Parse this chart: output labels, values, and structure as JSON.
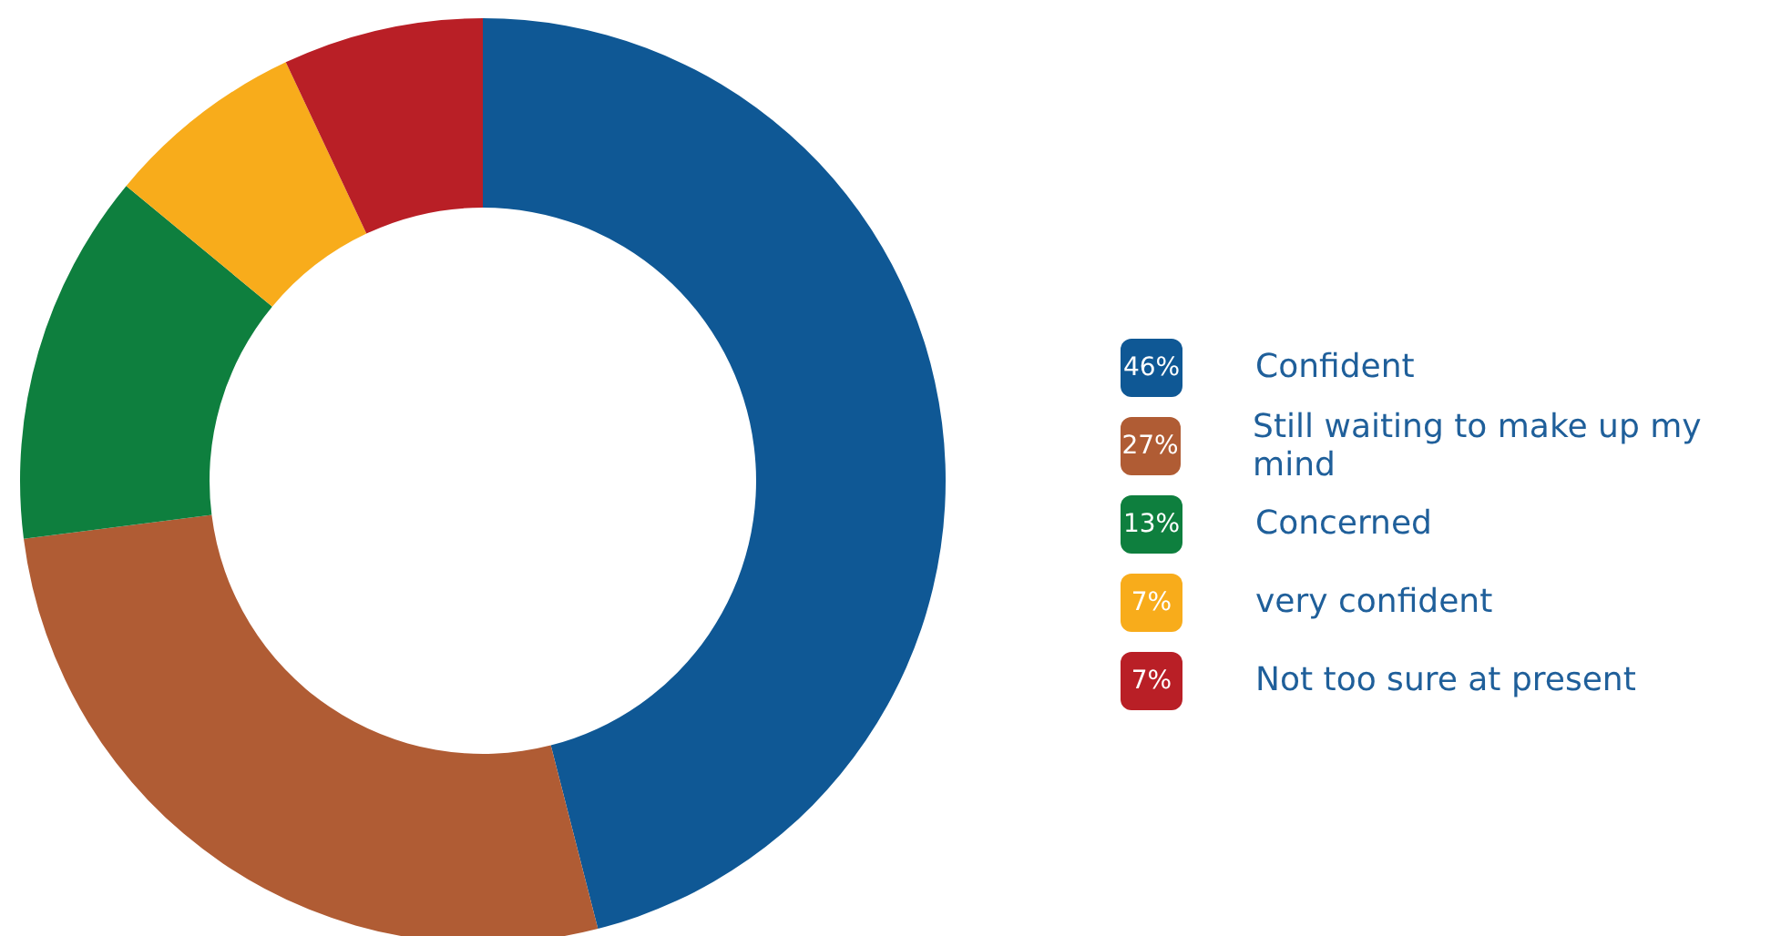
{
  "chart_data": {
    "type": "donut",
    "categories": [
      "Confident",
      "Still waiting to make up my mind",
      "Concerned",
      "very confident",
      "Not too sure at present"
    ],
    "values": [
      46,
      27,
      13,
      7,
      7
    ],
    "colors": [
      "#0f5895",
      "#b05c34",
      "#0e7f3e",
      "#f8ac1b",
      "#b91f26"
    ],
    "value_labels": [
      "46%",
      "27%",
      "13%",
      "7%",
      "7%"
    ],
    "legend": "right"
  }
}
